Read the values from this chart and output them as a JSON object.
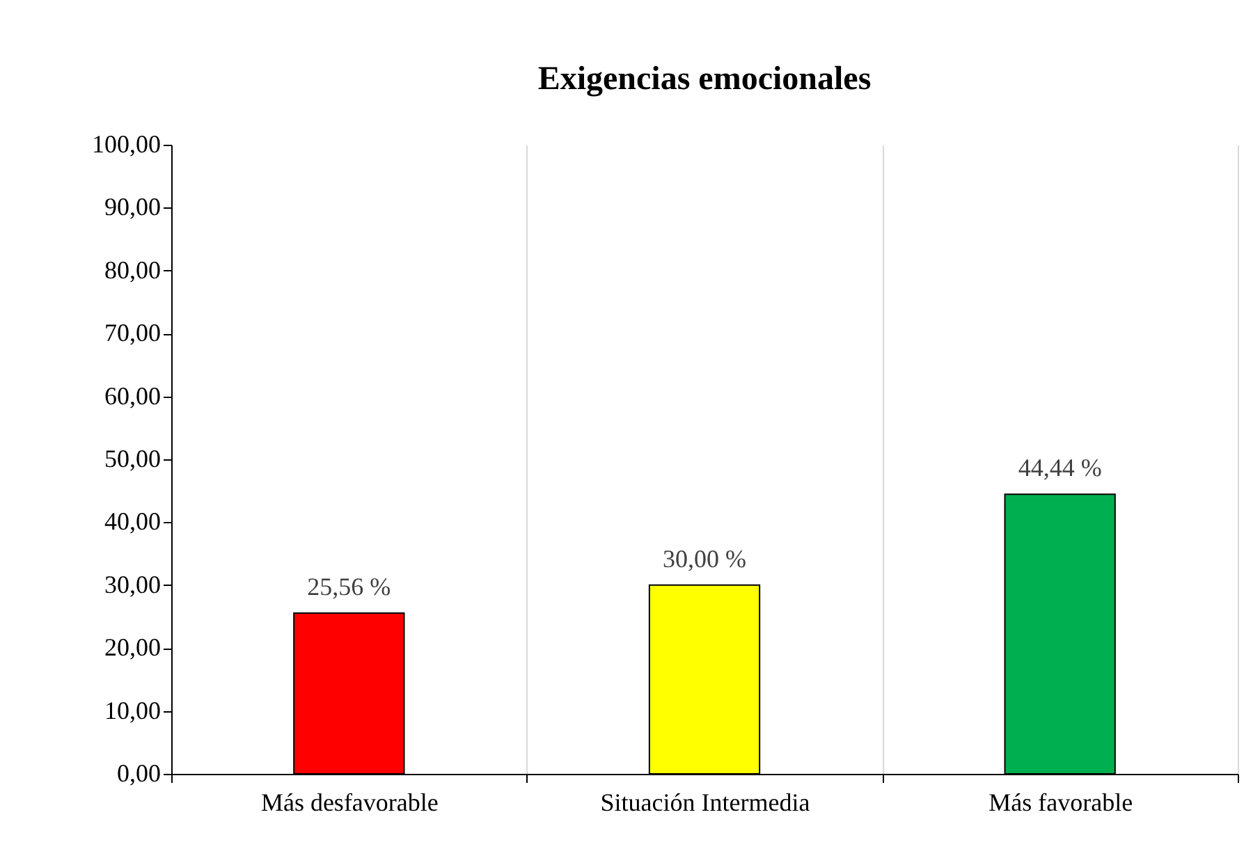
{
  "chart_data": {
    "type": "bar",
    "title": "Exigencias emocionales",
    "categories": [
      "Más desfavorable",
      "Situación Intermedia",
      "Más favorable"
    ],
    "values": [
      25.56,
      30.0,
      44.44
    ],
    "colors": [
      "#ff0000",
      "#ffff00",
      "#00b050"
    ],
    "value_labels": [
      "25,56 %",
      "30,00 %",
      "44,44 %"
    ],
    "ylim": [
      0,
      100
    ],
    "yticks": [
      {
        "value": 0,
        "label": "0,00"
      },
      {
        "value": 10,
        "label": "10,00"
      },
      {
        "value": 20,
        "label": "20,00"
      },
      {
        "value": 30,
        "label": "30,00"
      },
      {
        "value": 40,
        "label": "40,00"
      },
      {
        "value": 50,
        "label": "50,00"
      },
      {
        "value": 60,
        "label": "60,00"
      },
      {
        "value": 70,
        "label": "70,00"
      },
      {
        "value": 80,
        "label": "80,00"
      },
      {
        "value": 90,
        "label": "90,00"
      },
      {
        "value": 100,
        "label": "100,00"
      }
    ],
    "grid": "x",
    "legend": false
  }
}
